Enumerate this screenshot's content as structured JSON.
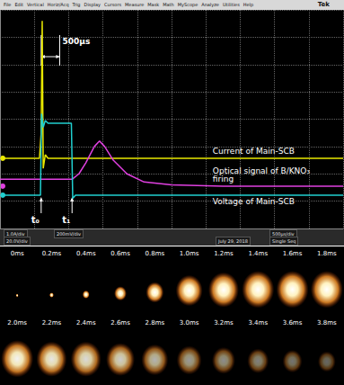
{
  "menu": {
    "items": [
      "File",
      "Edit",
      "Vertical",
      "Horiz/Acq",
      "Trig",
      "Display",
      "Cursors",
      "Measure",
      "Mask",
      "Math",
      "MyScope",
      "Analyze",
      "Utilities",
      "Help"
    ],
    "brand": "Tek"
  },
  "chart_data": {
    "type": "line",
    "xlim": [
      0,
      10000
    ],
    "xticks": [
      0,
      1000,
      2000,
      3000,
      4000,
      5000,
      6000,
      7000,
      8000,
      9000,
      10000
    ],
    "ylim": [
      0,
      8
    ],
    "yticks": [
      0,
      1,
      2,
      3,
      4,
      5,
      6,
      7,
      8
    ],
    "grid": true,
    "tick_labels": false,
    "series": [
      {
        "name": "Current of Main-SCB",
        "color": "#e8e800",
        "x": [
          0,
          1150,
          1200,
          1230,
          1260,
          1320,
          1400,
          10000
        ],
        "values": [
          2.57,
          2.57,
          3.5,
          7.6,
          2.2,
          2.7,
          2.57,
          2.57
        ]
      },
      {
        "name": "Optical signal of B/KNO₃ firing",
        "color": "#e040e0",
        "x": [
          0,
          2100,
          2300,
          2500,
          2750,
          2900,
          3050,
          3300,
          3700,
          4200,
          5000,
          6500,
          10000
        ],
        "values": [
          1.8,
          1.8,
          2.0,
          2.4,
          3.0,
          3.2,
          3.0,
          2.5,
          2.0,
          1.7,
          1.6,
          1.55,
          1.55
        ]
      },
      {
        "name": "Voltage of Main-SCB",
        "color": "#20d0d0",
        "x": [
          0,
          1180,
          1210,
          1260,
          1320,
          1400,
          2080,
          2120,
          2200,
          10000
        ],
        "values": [
          1.22,
          1.22,
          4.2,
          3.7,
          3.95,
          3.85,
          3.85,
          1.1,
          1.22,
          1.22
        ]
      }
    ],
    "annotations": [
      {
        "text": "500μs",
        "x": [
          1200,
          1740
        ]
      },
      {
        "text": "t₀",
        "x": 1200
      },
      {
        "text": "t₁",
        "x": 2100
      }
    ]
  },
  "status": {
    "texts": [
      "1.0A/div",
      "20.0V/div",
      "200mV/div",
      "500μs/div",
      "Single Seq",
      "July 29, 2018"
    ]
  },
  "frames": {
    "labels": [
      "0ms",
      "0.2ms",
      "0.4ms",
      "0.6ms",
      "0.8ms",
      "1.0ms",
      "1.2ms",
      "1.4ms",
      "1.6ms",
      "1.8ms",
      "2.0ms",
      "2.2ms",
      "2.4ms",
      "2.6ms",
      "2.8ms",
      "3.0ms",
      "3.2ms",
      "3.4ms",
      "3.6ms",
      "3.8ms"
    ]
  }
}
